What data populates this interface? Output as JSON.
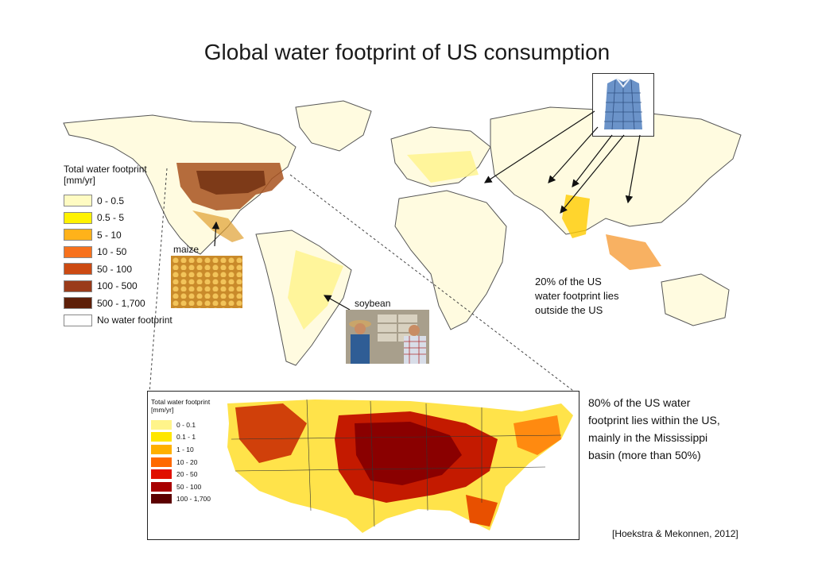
{
  "title": "Global water footprint of US consumption",
  "main_legend": {
    "title_line1": "Total water footprint",
    "title_line2": "[mm/yr]",
    "items": [
      {
        "label": "0 - 0.5",
        "color": "#fffbc2"
      },
      {
        "label": "0.5 - 5",
        "color": "#fff200"
      },
      {
        "label": "5 - 10",
        "color": "#ffb21a"
      },
      {
        "label": "10 - 50",
        "color": "#f7711c"
      },
      {
        "label": "50 - 100",
        "color": "#cc4a12"
      },
      {
        "label": "100 - 500",
        "color": "#9a3b1a"
      },
      {
        "label": "500 - 1,700",
        "color": "#5e1f08"
      },
      {
        "label": "No water footprint",
        "color": "#ffffff"
      }
    ]
  },
  "inset_legend": {
    "title_line1": "Total water footprint",
    "title_line2": "[mm/yr]",
    "items": [
      {
        "label": "0 - 0.1",
        "color": "#fff48a"
      },
      {
        "label": "0.1 - 1",
        "color": "#ffe600"
      },
      {
        "label": "1 - 10",
        "color": "#ffb000"
      },
      {
        "label": "10 - 20",
        "color": "#ff6a00"
      },
      {
        "label": "20 - 50",
        "color": "#e01000"
      },
      {
        "label": "50 - 100",
        "color": "#a80000"
      },
      {
        "label": "100 - 1,700",
        "color": "#5c0000"
      }
    ]
  },
  "annotations": {
    "maize": "maize",
    "soybean": "soybean",
    "outside_note": [
      "20% of the US",
      "water footprint lies",
      "outside the US"
    ],
    "inside_note": [
      "80% of the US water",
      "footprint lies within the US,",
      "mainly in the Mississippi",
      "basin (more than 50%)"
    ]
  },
  "citation": "[Hoekstra & Mekonnen, 2012]"
}
